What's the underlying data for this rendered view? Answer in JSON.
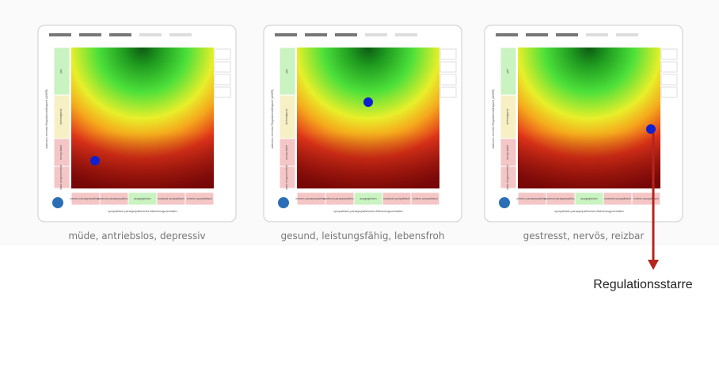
{
  "panels": [
    {
      "caption": "müde, antriebslos, depressiv",
      "y_axis_label": "autonom-nervöse Regulationsfähigkeit (ANRR)",
      "x_axis_label": "sympathisch-parasympathisches Aktivierungsverhalten",
      "left_labels": [
        "gut",
        "befriedigend",
        "wenig stabil",
        "stark eingeschränkt"
      ],
      "bottom_labels": [
        "extrem parasympathisch",
        "moderat parasympathisch",
        "ausgeglichen",
        "moderat sympathisch",
        "extrem sympathisch"
      ]
    },
    {
      "caption": "gesund, leistungsfähig, lebensfroh",
      "y_axis_label": "autonom-nervöse Regulationsfähigkeit (ANRR)",
      "x_axis_label": "sympathisch-parasympathisches Aktivierungsverhalten",
      "left_labels": [
        "gut",
        "befriedigend",
        "wenig stabil",
        "stark eingeschränkt"
      ],
      "bottom_labels": [
        "extrem parasympathisch",
        "moderat parasympathisch",
        "ausgeglichen",
        "moderat sympathisch",
        "extrem sympathisch"
      ]
    },
    {
      "caption": "gestresst, nervös, reizbar",
      "y_axis_label": "autonom-nervöse Regulationsfähigkeit (ANRR)",
      "x_axis_label": "sympathisch-parasympathisches Aktivierungsverhalten",
      "left_labels": [
        "gut",
        "befriedigend",
        "wenig stabil",
        "stark eingeschränkt"
      ],
      "bottom_labels": [
        "extrem parasympathisch",
        "moderat parasympathisch",
        "ausgeglichen",
        "moderat sympathisch",
        "extrem sympathisch"
      ]
    }
  ],
  "annotation": "Regulationsstarre"
}
